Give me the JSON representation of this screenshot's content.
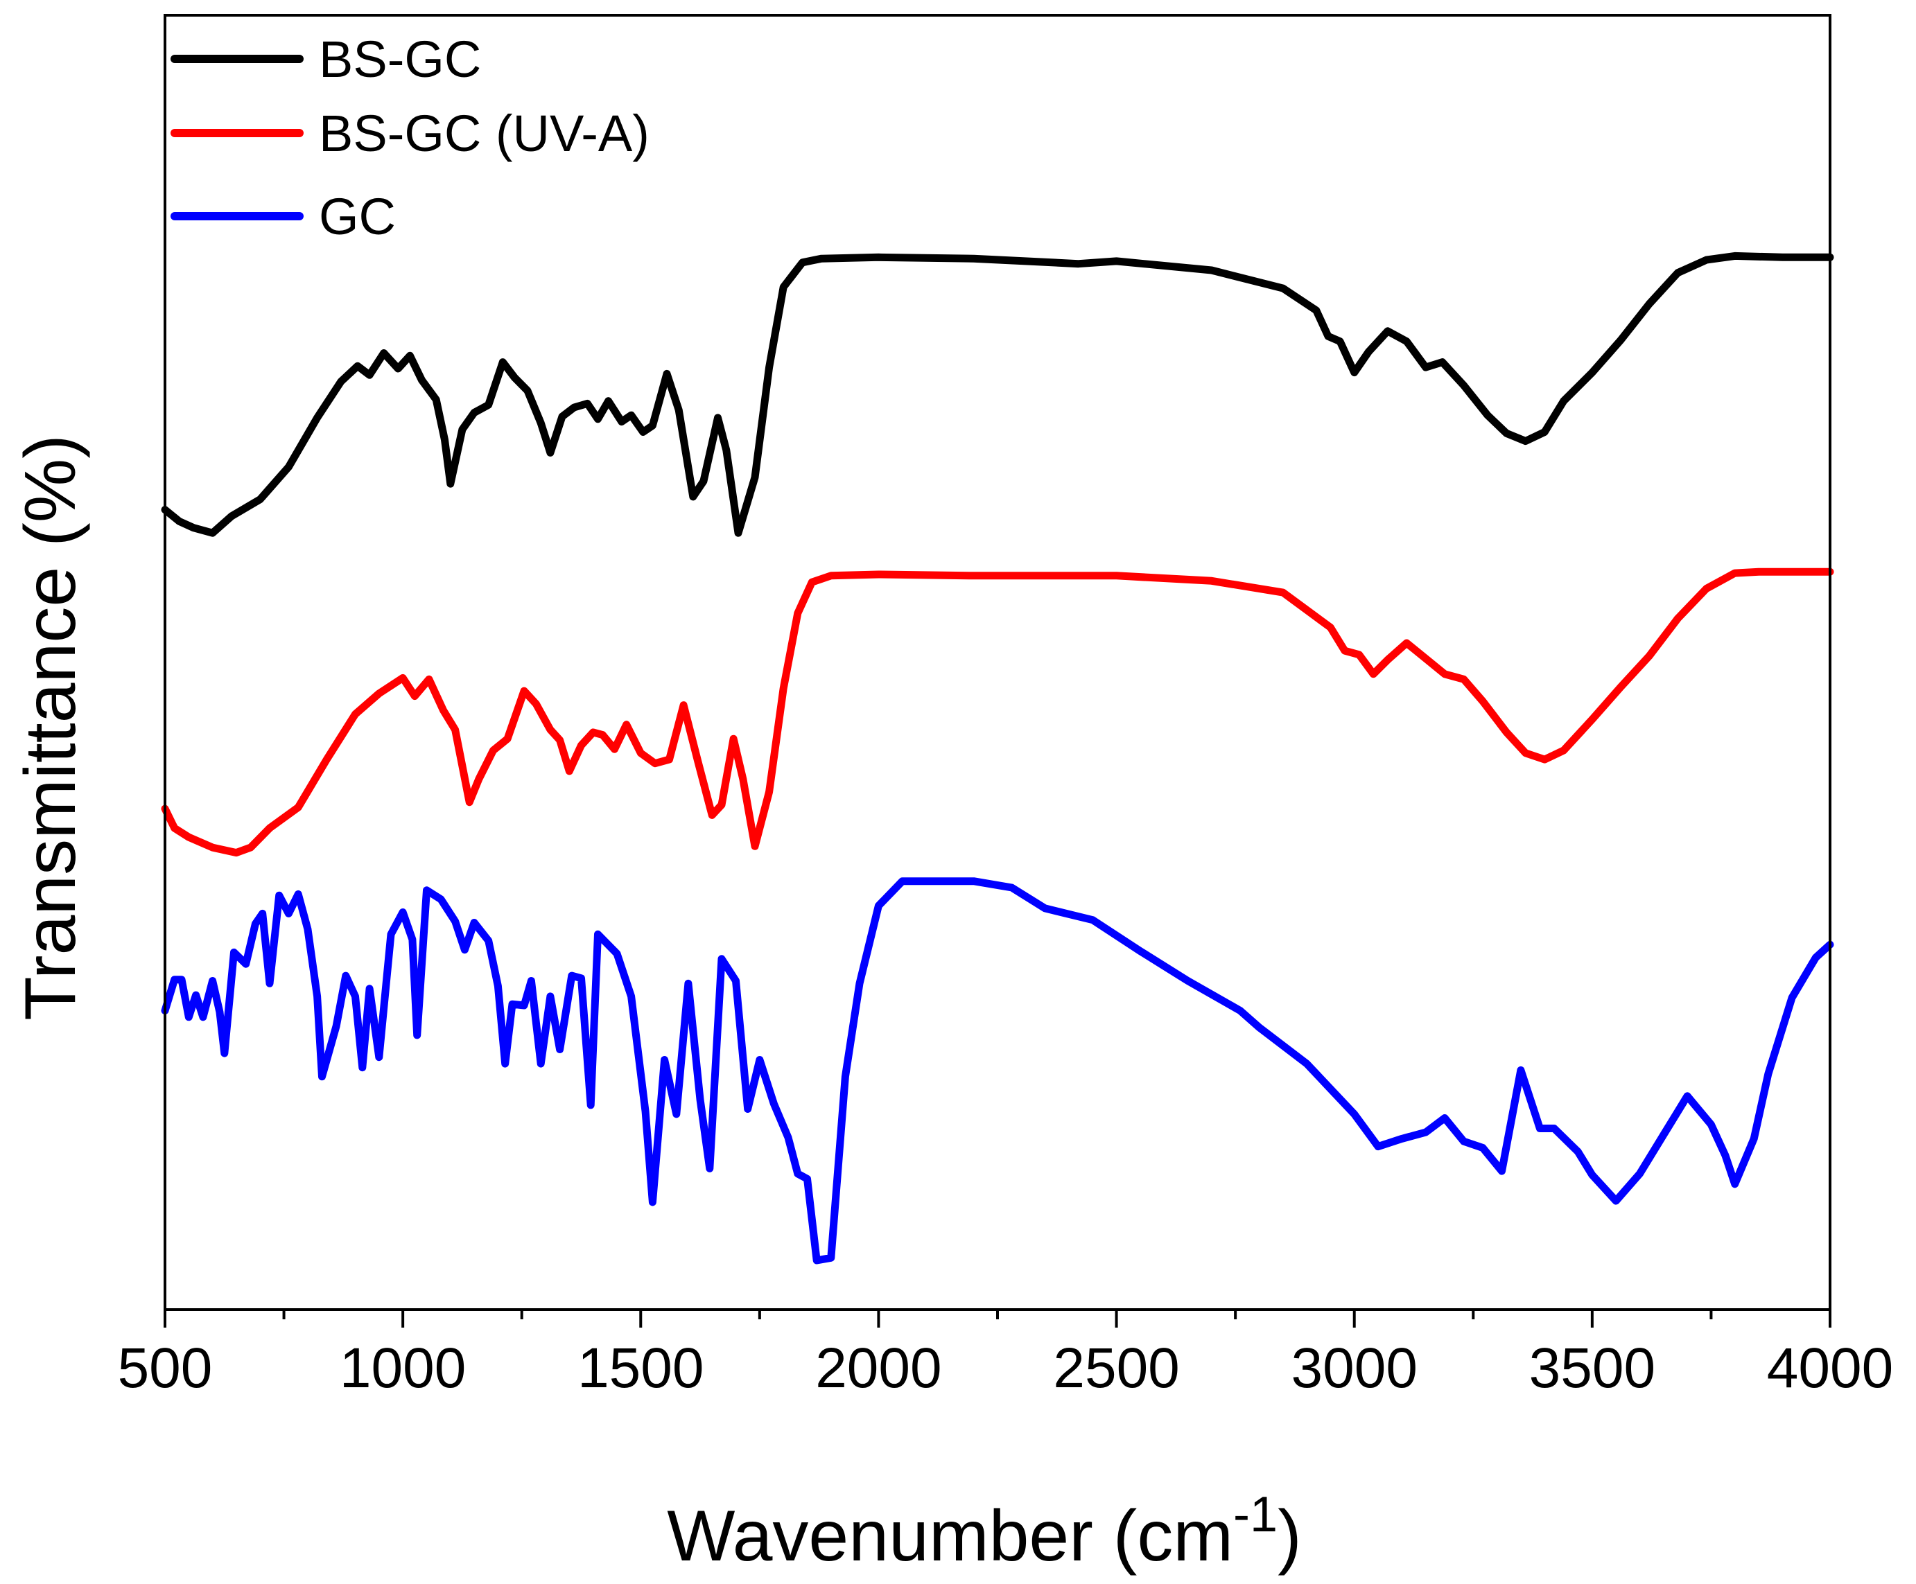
{
  "chart_data": {
    "type": "line",
    "title": "",
    "xlabel": "Wavenumber (cm",
    "xlabel_superscript": "-1",
    "xlabel_close": ")",
    "ylabel": "Transmittance (%)",
    "xlim": [
      500,
      4000
    ],
    "ylim": [
      0,
      1
    ],
    "y_ticks_shown": false,
    "grid": false,
    "legend_position": "top-left",
    "x_ticks": [
      500,
      1000,
      1500,
      2000,
      2500,
      3000,
      3500,
      4000
    ],
    "x_tick_labels": [
      "500",
      "1000",
      "1500",
      "2000",
      "2500",
      "3000",
      "3500",
      "4000"
    ],
    "series": [
      {
        "name": "BS-GC",
        "color": "#000000",
        "points": [
          [
            500,
            0.618
          ],
          [
            530,
            0.609
          ],
          [
            560,
            0.604
          ],
          [
            600,
            0.6
          ],
          [
            640,
            0.613
          ],
          [
            700,
            0.626
          ],
          [
            760,
            0.651
          ],
          [
            820,
            0.689
          ],
          [
            870,
            0.717
          ],
          [
            905,
            0.729
          ],
          [
            930,
            0.722
          ],
          [
            960,
            0.739
          ],
          [
            990,
            0.727
          ],
          [
            1015,
            0.737
          ],
          [
            1040,
            0.718
          ],
          [
            1070,
            0.703
          ],
          [
            1088,
            0.672
          ],
          [
            1100,
            0.638
          ],
          [
            1125,
            0.68
          ],
          [
            1150,
            0.693
          ],
          [
            1180,
            0.699
          ],
          [
            1210,
            0.732
          ],
          [
            1235,
            0.72
          ],
          [
            1262,
            0.71
          ],
          [
            1290,
            0.685
          ],
          [
            1310,
            0.662
          ],
          [
            1335,
            0.69
          ],
          [
            1360,
            0.697
          ],
          [
            1388,
            0.7
          ],
          [
            1410,
            0.688
          ],
          [
            1432,
            0.702
          ],
          [
            1460,
            0.686
          ],
          [
            1480,
            0.691
          ],
          [
            1505,
            0.678
          ],
          [
            1525,
            0.683
          ],
          [
            1555,
            0.723
          ],
          [
            1580,
            0.695
          ],
          [
            1610,
            0.628
          ],
          [
            1632,
            0.64
          ],
          [
            1662,
            0.689
          ],
          [
            1680,
            0.664
          ],
          [
            1705,
            0.6
          ],
          [
            1740,
            0.643
          ],
          [
            1770,
            0.728
          ],
          [
            1800,
            0.79
          ],
          [
            1840,
            0.809
          ],
          [
            1880,
            0.812
          ],
          [
            2000,
            0.813
          ],
          [
            2200,
            0.812
          ],
          [
            2420,
            0.808
          ],
          [
            2500,
            0.81
          ],
          [
            2700,
            0.803
          ],
          [
            2850,
            0.789
          ],
          [
            2920,
            0.772
          ],
          [
            2945,
            0.752
          ],
          [
            2970,
            0.748
          ],
          [
            3000,
            0.724
          ],
          [
            3030,
            0.74
          ],
          [
            3070,
            0.756
          ],
          [
            3110,
            0.748
          ],
          [
            3150,
            0.728
          ],
          [
            3185,
            0.732
          ],
          [
            3230,
            0.714
          ],
          [
            3280,
            0.691
          ],
          [
            3320,
            0.677
          ],
          [
            3360,
            0.671
          ],
          [
            3400,
            0.678
          ],
          [
            3440,
            0.702
          ],
          [
            3500,
            0.724
          ],
          [
            3560,
            0.749
          ],
          [
            3620,
            0.777
          ],
          [
            3680,
            0.801
          ],
          [
            3740,
            0.811
          ],
          [
            3800,
            0.814
          ],
          [
            3900,
            0.813
          ],
          [
            4000,
            0.813
          ]
        ]
      },
      {
        "name": "BS-GC (UV-A)",
        "color": "#ff0000",
        "points": [
          [
            500,
            0.387
          ],
          [
            520,
            0.372
          ],
          [
            550,
            0.365
          ],
          [
            600,
            0.357
          ],
          [
            650,
            0.353
          ],
          [
            680,
            0.357
          ],
          [
            720,
            0.372
          ],
          [
            780,
            0.388
          ],
          [
            840,
            0.425
          ],
          [
            900,
            0.46
          ],
          [
            950,
            0.476
          ],
          [
            1000,
            0.488
          ],
          [
            1025,
            0.474
          ],
          [
            1055,
            0.487
          ],
          [
            1085,
            0.463
          ],
          [
            1110,
            0.448
          ],
          [
            1140,
            0.392
          ],
          [
            1160,
            0.41
          ],
          [
            1190,
            0.432
          ],
          [
            1220,
            0.441
          ],
          [
            1255,
            0.478
          ],
          [
            1280,
            0.468
          ],
          [
            1310,
            0.448
          ],
          [
            1330,
            0.44
          ],
          [
            1350,
            0.416
          ],
          [
            1375,
            0.436
          ],
          [
            1400,
            0.446
          ],
          [
            1420,
            0.444
          ],
          [
            1445,
            0.433
          ],
          [
            1470,
            0.452
          ],
          [
            1500,
            0.43
          ],
          [
            1530,
            0.422
          ],
          [
            1560,
            0.425
          ],
          [
            1590,
            0.467
          ],
          [
            1620,
            0.424
          ],
          [
            1650,
            0.382
          ],
          [
            1670,
            0.39
          ],
          [
            1695,
            0.441
          ],
          [
            1715,
            0.41
          ],
          [
            1740,
            0.358
          ],
          [
            1770,
            0.4
          ],
          [
            1800,
            0.48
          ],
          [
            1830,
            0.538
          ],
          [
            1860,
            0.562
          ],
          [
            1900,
            0.567
          ],
          [
            2000,
            0.568
          ],
          [
            2200,
            0.567
          ],
          [
            2500,
            0.567
          ],
          [
            2700,
            0.563
          ],
          [
            2850,
            0.554
          ],
          [
            2950,
            0.527
          ],
          [
            2980,
            0.509
          ],
          [
            3010,
            0.506
          ],
          [
            3040,
            0.491
          ],
          [
            3070,
            0.502
          ],
          [
            3110,
            0.515
          ],
          [
            3150,
            0.503
          ],
          [
            3190,
            0.491
          ],
          [
            3230,
            0.487
          ],
          [
            3270,
            0.47
          ],
          [
            3320,
            0.446
          ],
          [
            3360,
            0.43
          ],
          [
            3400,
            0.425
          ],
          [
            3440,
            0.432
          ],
          [
            3500,
            0.456
          ],
          [
            3560,
            0.481
          ],
          [
            3620,
            0.505
          ],
          [
            3680,
            0.534
          ],
          [
            3740,
            0.557
          ],
          [
            3800,
            0.569
          ],
          [
            3850,
            0.57
          ],
          [
            4000,
            0.57
          ]
        ]
      },
      {
        "name": "GC",
        "color": "#0000ff",
        "points": [
          [
            500,
            0.231
          ],
          [
            520,
            0.255
          ],
          [
            535,
            0.255
          ],
          [
            550,
            0.226
          ],
          [
            565,
            0.243
          ],
          [
            580,
            0.226
          ],
          [
            600,
            0.254
          ],
          [
            615,
            0.23
          ],
          [
            625,
            0.198
          ],
          [
            645,
            0.276
          ],
          [
            670,
            0.267
          ],
          [
            690,
            0.298
          ],
          [
            705,
            0.306
          ],
          [
            720,
            0.252
          ],
          [
            740,
            0.32
          ],
          [
            760,
            0.306
          ],
          [
            780,
            0.321
          ],
          [
            800,
            0.294
          ],
          [
            820,
            0.242
          ],
          [
            830,
            0.18
          ],
          [
            860,
            0.219
          ],
          [
            880,
            0.258
          ],
          [
            900,
            0.242
          ],
          [
            915,
            0.187
          ],
          [
            930,
            0.248
          ],
          [
            950,
            0.195
          ],
          [
            975,
            0.29
          ],
          [
            1000,
            0.307
          ],
          [
            1020,
            0.286
          ],
          [
            1030,
            0.212
          ],
          [
            1050,
            0.324
          ],
          [
            1080,
            0.317
          ],
          [
            1110,
            0.3
          ],
          [
            1130,
            0.278
          ],
          [
            1150,
            0.299
          ],
          [
            1180,
            0.285
          ],
          [
            1200,
            0.25
          ],
          [
            1215,
            0.19
          ],
          [
            1230,
            0.236
          ],
          [
            1255,
            0.235
          ],
          [
            1270,
            0.254
          ],
          [
            1290,
            0.19
          ],
          [
            1310,
            0.242
          ],
          [
            1330,
            0.201
          ],
          [
            1355,
            0.258
          ],
          [
            1375,
            0.256
          ],
          [
            1395,
            0.158
          ],
          [
            1410,
            0.29
          ],
          [
            1450,
            0.275
          ],
          [
            1480,
            0.242
          ],
          [
            1510,
            0.153
          ],
          [
            1525,
            0.083
          ],
          [
            1550,
            0.193
          ],
          [
            1575,
            0.151
          ],
          [
            1600,
            0.252
          ],
          [
            1625,
            0.162
          ],
          [
            1645,
            0.109
          ],
          [
            1670,
            0.271
          ],
          [
            1700,
            0.254
          ],
          [
            1725,
            0.155
          ],
          [
            1750,
            0.193
          ],
          [
            1780,
            0.159
          ],
          [
            1810,
            0.133
          ],
          [
            1830,
            0.105
          ],
          [
            1850,
            0.101
          ],
          [
            1870,
            0.038
          ],
          [
            1900,
            0.04
          ],
          [
            1930,
            0.18
          ],
          [
            1960,
            0.252
          ],
          [
            2000,
            0.312
          ],
          [
            2050,
            0.331
          ],
          [
            2100,
            0.331
          ],
          [
            2200,
            0.331
          ],
          [
            2280,
            0.326
          ],
          [
            2350,
            0.31
          ],
          [
            2450,
            0.301
          ],
          [
            2550,
            0.277
          ],
          [
            2650,
            0.254
          ],
          [
            2760,
            0.231
          ],
          [
            2800,
            0.218
          ],
          [
            2900,
            0.19
          ],
          [
            3000,
            0.151
          ],
          [
            3050,
            0.126
          ],
          [
            3100,
            0.132
          ],
          [
            3150,
            0.137
          ],
          [
            3190,
            0.148
          ],
          [
            3230,
            0.13
          ],
          [
            3270,
            0.125
          ],
          [
            3310,
            0.107
          ],
          [
            3350,
            0.185
          ],
          [
            3390,
            0.14
          ],
          [
            3420,
            0.14
          ],
          [
            3470,
            0.122
          ],
          [
            3500,
            0.104
          ],
          [
            3550,
            0.084
          ],
          [
            3600,
            0.105
          ],
          [
            3650,
            0.135
          ],
          [
            3700,
            0.165
          ],
          [
            3750,
            0.143
          ],
          [
            3780,
            0.119
          ],
          [
            3800,
            0.097
          ],
          [
            3840,
            0.132
          ],
          [
            3870,
            0.182
          ],
          [
            3920,
            0.241
          ],
          [
            3970,
            0.272
          ],
          [
            4000,
            0.282
          ]
        ]
      }
    ]
  }
}
